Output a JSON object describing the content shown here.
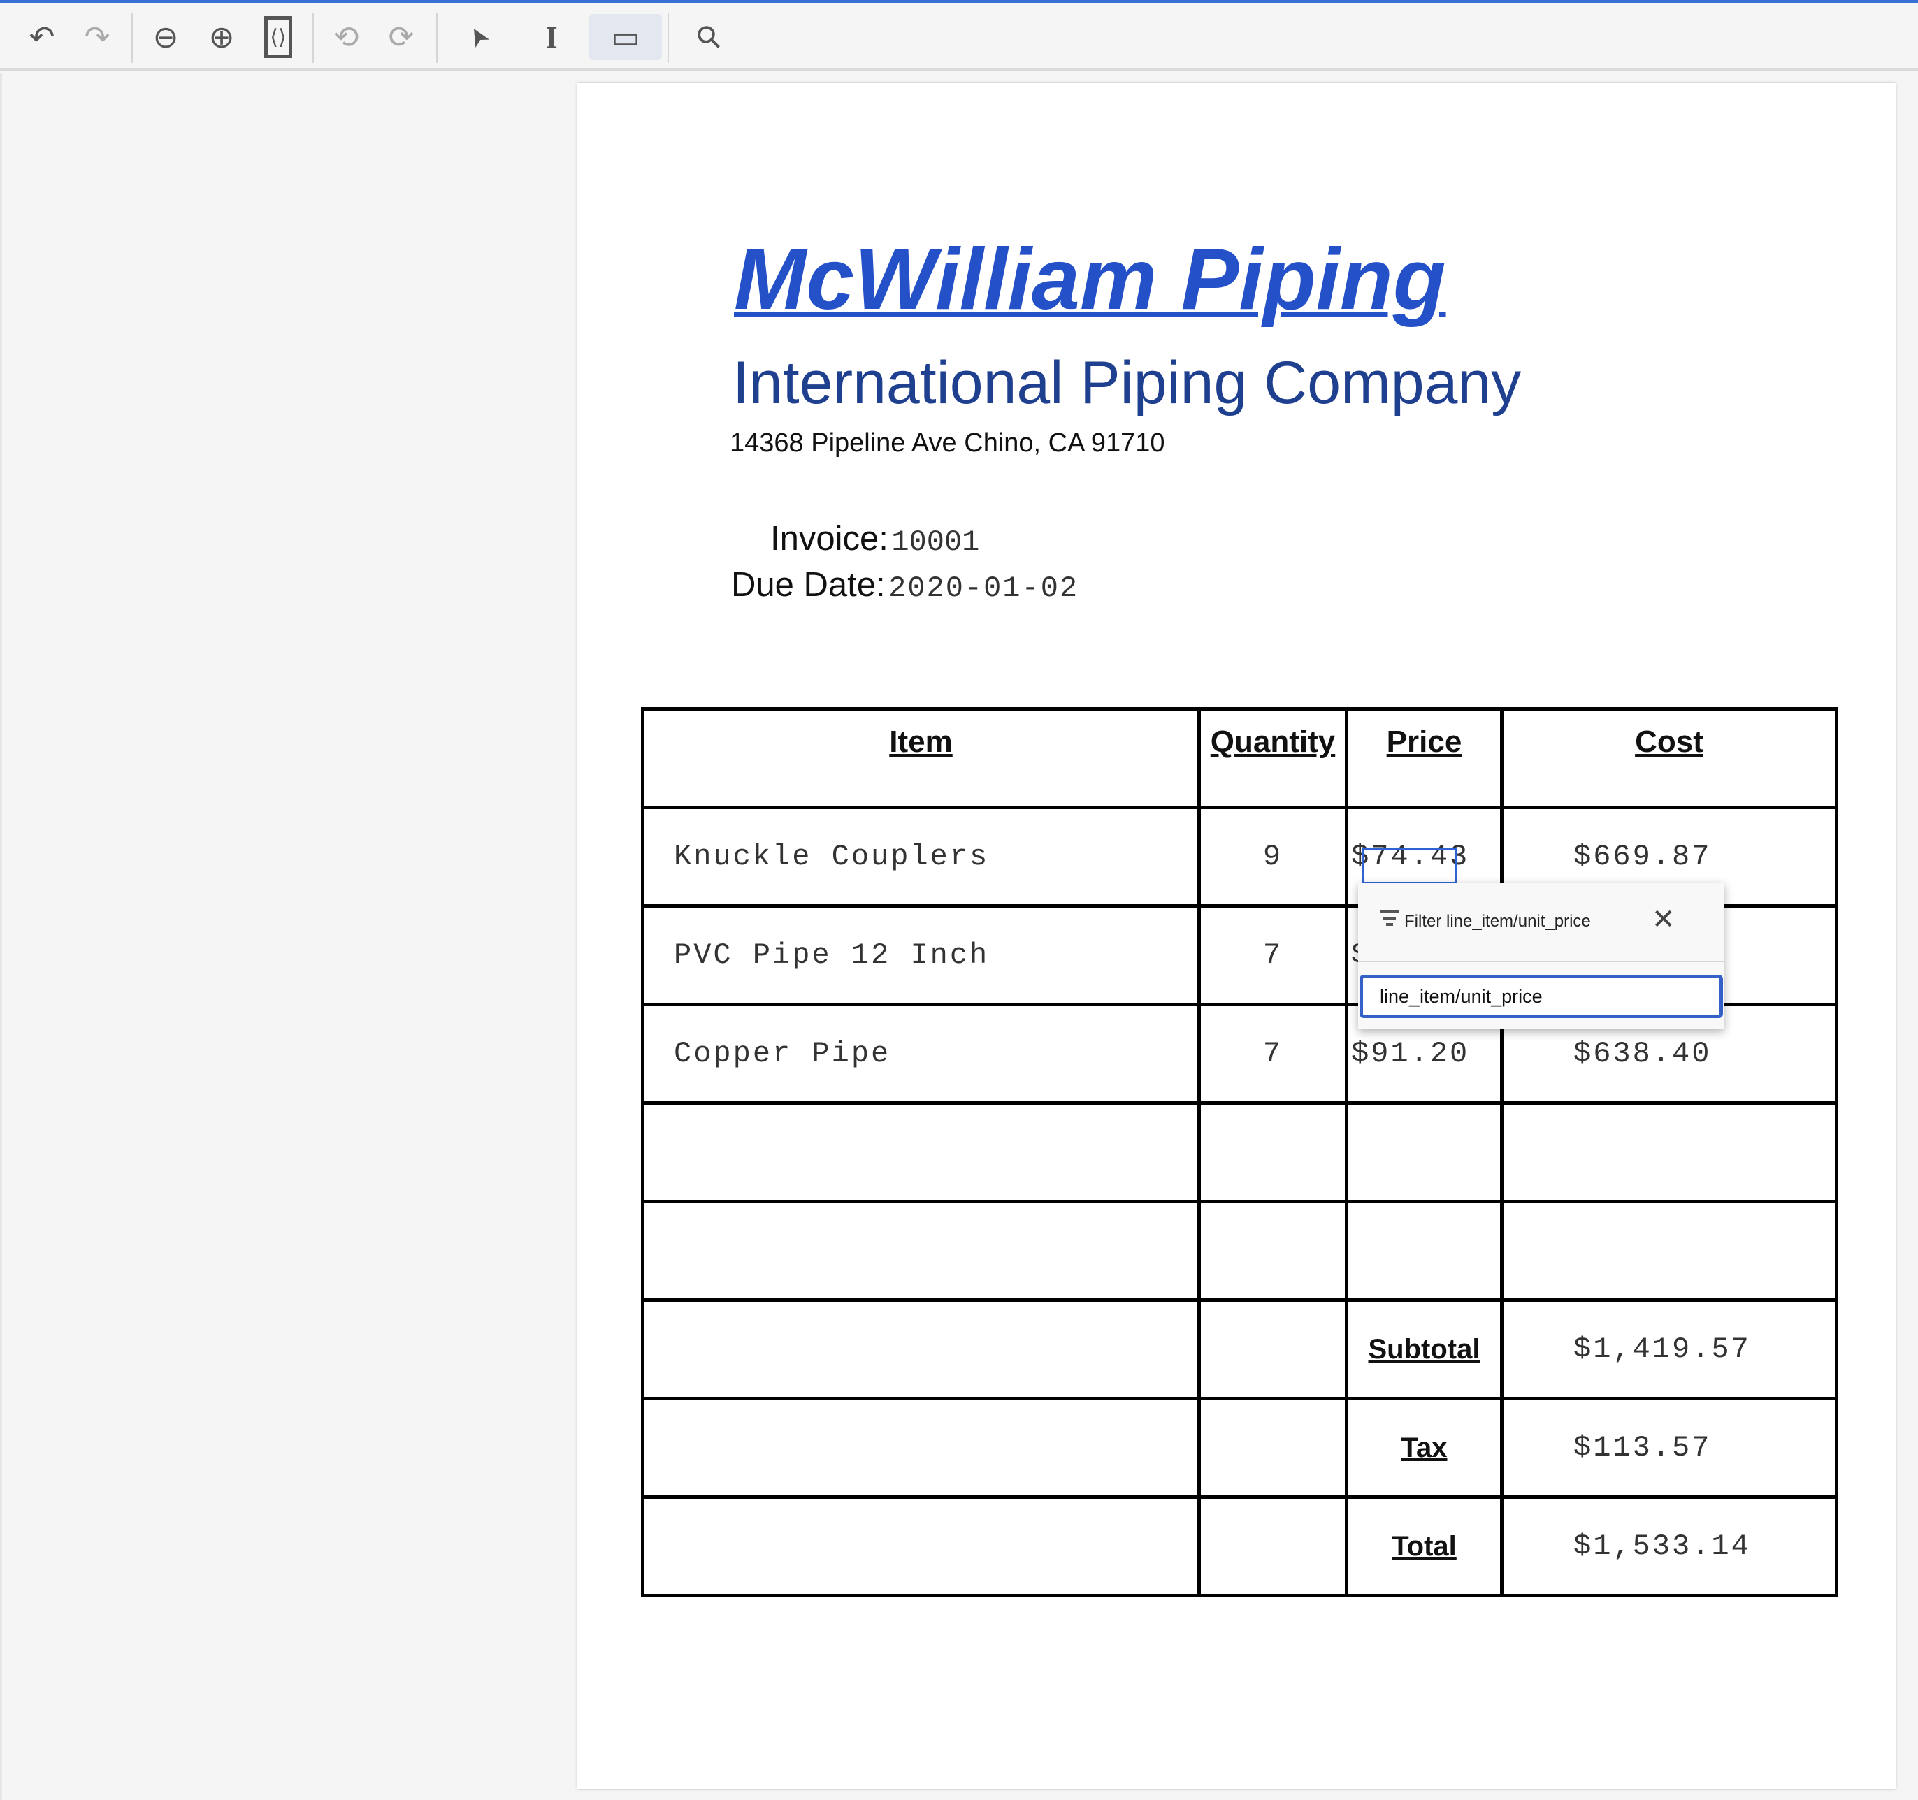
{
  "toolbar": {
    "buttons": [
      {
        "name": "undo-icon",
        "glyph": "↶"
      },
      {
        "name": "redo-icon",
        "glyph": "↷"
      },
      {
        "name": "zoom-out-icon",
        "glyph": "⊖"
      },
      {
        "name": "zoom-in-icon",
        "glyph": "⊕"
      },
      {
        "name": "fit-page-icon",
        "glyph": "⟨⟩"
      },
      {
        "name": "rotate-left-icon",
        "glyph": "⟲"
      },
      {
        "name": "rotate-right-icon",
        "glyph": "⟳"
      },
      {
        "name": "pointer-icon",
        "glyph": "➤"
      },
      {
        "name": "text-select-icon",
        "glyph": "I"
      },
      {
        "name": "add-box-icon",
        "glyph": "▭"
      },
      {
        "name": "search-icon",
        "glyph": "⚲"
      }
    ]
  },
  "document": {
    "title": "McWilliam Piping",
    "subtitle": "International Piping Company",
    "address": "14368 Pipeline Ave Chino, CA 91710",
    "invoice_label": "Invoice:",
    "invoice_value": "10001",
    "due_label": "Due Date:",
    "due_value": "2020-01-02",
    "table": {
      "headers": [
        "Item",
        "Quantity",
        "Price",
        "Cost"
      ],
      "rows": [
        {
          "item": "Knuckle Couplers",
          "qty": "9",
          "price": "$74.43",
          "cost": "$669.87"
        },
        {
          "item": "PVC Pipe 12 Inch",
          "qty": "7",
          "price": "$",
          "cost": ""
        },
        {
          "item": "Copper Pipe",
          "qty": "7",
          "price": "$91.20",
          "cost": "$638.40"
        }
      ],
      "subtotal_label": "Subtotal",
      "subtotal": "$1,419.57",
      "tax_label": "Tax",
      "tax": "$113.57",
      "total_label": "Total",
      "total": "$1,533.14"
    }
  },
  "popup": {
    "title": "Filter line_item/unit_price",
    "input_value": "line_item/unit_price"
  },
  "colors": {
    "accent": "#2f63d3",
    "title": "#2450c8"
  }
}
